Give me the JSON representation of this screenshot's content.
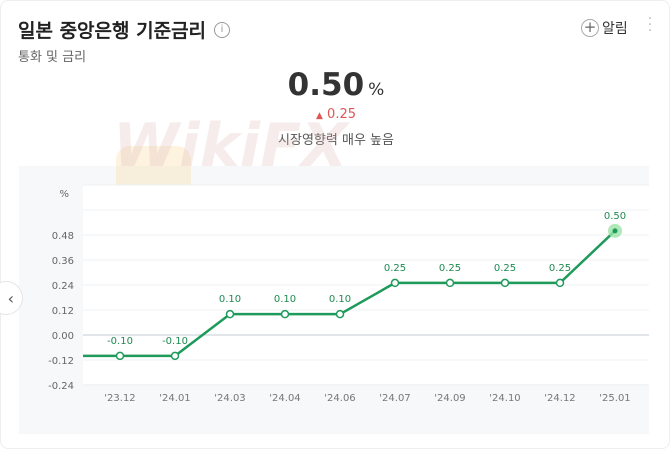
{
  "header": {
    "title": "일본 중앙은행 기준금리",
    "info_icon": "i",
    "subtitle": "통화 및 금리",
    "alert_label": "알림"
  },
  "summary": {
    "value": "0.50",
    "unit": "%",
    "change": "0.25",
    "impact": "시장영향력 매우 높음"
  },
  "colors": {
    "line": "#1e9a5a",
    "label": "#1e8a50",
    "up": "#e05555"
  },
  "chart_data": {
    "type": "line",
    "ylabel": "%",
    "categories": [
      "'23.12",
      "'24.01",
      "'24.03",
      "'24.04",
      "'24.06",
      "'24.07",
      "'24.09",
      "'24.10",
      "'24.12",
      "'25.01"
    ],
    "values": [
      -0.1,
      -0.1,
      0.1,
      0.1,
      0.1,
      0.25,
      0.25,
      0.25,
      0.25,
      0.5
    ],
    "data_labels": [
      "-0.10",
      "-0.10",
      "0.10",
      "0.10",
      "0.10",
      "0.25",
      "0.25",
      "0.25",
      "0.25",
      "0.50"
    ],
    "yticks": [
      "0.48",
      "0.36",
      "0.24",
      "0.12",
      "0.00",
      "-0.12",
      "-0.24"
    ],
    "ytick_values": [
      0.48,
      0.36,
      0.24,
      0.12,
      0.0,
      -0.12,
      -0.24
    ],
    "ylim": [
      -0.24,
      0.72
    ],
    "grid": true
  }
}
